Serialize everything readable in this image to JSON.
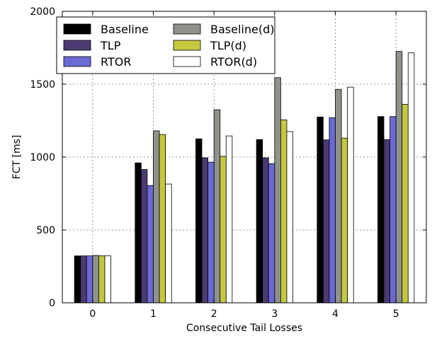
{
  "chart_data": {
    "type": "bar",
    "xlabel": "Consecutive Tail Losses",
    "ylabel": "FCT [ms]",
    "categories": [
      "0",
      "1",
      "2",
      "3",
      "4",
      "5"
    ],
    "ylim": [
      0,
      2000
    ],
    "yticks": [
      "0",
      "500",
      "1000",
      "1500",
      "2000"
    ],
    "grid": true,
    "legend_position": "top-left",
    "series": [
      {
        "name": "Baseline",
        "color": "#000000",
        "values": [
          322,
          960,
          1125,
          1120,
          1275,
          1278
        ]
      },
      {
        "name": "TLP",
        "color": "#4b3a72",
        "values": [
          322,
          915,
          995,
          995,
          1118,
          1120
        ]
      },
      {
        "name": "RTOR",
        "color": "#6a6ad6",
        "values": [
          322,
          805,
          965,
          955,
          1270,
          1278
        ]
      },
      {
        "name": "Baseline(d)",
        "color": "#8f928a",
        "values": [
          325,
          1180,
          1325,
          1545,
          1465,
          1725
        ]
      },
      {
        "name": "TLP(d)",
        "color": "#c5c83f",
        "values": [
          322,
          1155,
          1005,
          1255,
          1130,
          1362
        ]
      },
      {
        "name": "RTOR(d)",
        "color": "#ffffff",
        "values": [
          322,
          815,
          1145,
          1175,
          1480,
          1715
        ]
      }
    ]
  }
}
